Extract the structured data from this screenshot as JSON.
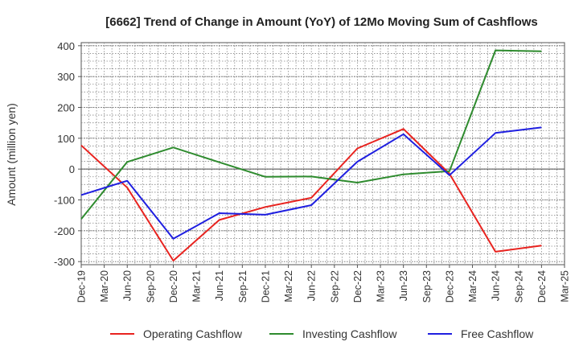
{
  "chart_data": {
    "type": "line",
    "title": "[6662]  Trend of Change in Amount (YoY) of 12Mo Moving Sum of Cashflows",
    "ylabel": "Amount (million yen)",
    "xlabel": "",
    "ylim": [
      -310,
      410
    ],
    "yticks": [
      400,
      300,
      200,
      100,
      0,
      -100,
      -200,
      -300
    ],
    "categories": [
      "Dec-19",
      "Mar-20",
      "Jun-20",
      "Sep-20",
      "Dec-20",
      "Mar-21",
      "Jun-21",
      "Sep-21",
      "Dec-21",
      "Mar-22",
      "Jun-22",
      "Sep-22",
      "Dec-22",
      "Mar-23",
      "Jun-23",
      "Sep-23",
      "Dec-23",
      "Mar-24",
      "Jun-24",
      "Sep-24",
      "Dec-24",
      "Mar-25"
    ],
    "series": [
      {
        "name": "Operating Cashflow",
        "color": "#e8231f",
        "values": [
          77,
          null,
          -60,
          null,
          -297,
          null,
          -165,
          null,
          -123,
          null,
          -93,
          null,
          67,
          null,
          130,
          null,
          -15,
          null,
          -268,
          null,
          -248,
          null
        ]
      },
      {
        "name": "Investing Cashflow",
        "color": "#2e8b2e",
        "values": [
          -162,
          null,
          23,
          null,
          70,
          null,
          22,
          null,
          -25,
          null,
          -24,
          null,
          -44,
          null,
          -17,
          null,
          -7,
          null,
          385,
          null,
          382,
          null
        ]
      },
      {
        "name": "Free Cashflow",
        "color": "#1f1fe0",
        "values": [
          -84,
          null,
          -38,
          null,
          -226,
          null,
          -143,
          null,
          -148,
          null,
          -117,
          null,
          24,
          null,
          113,
          null,
          -20,
          null,
          117,
          null,
          135,
          null
        ]
      }
    ],
    "grid": true,
    "legend_position": "bottom"
  }
}
